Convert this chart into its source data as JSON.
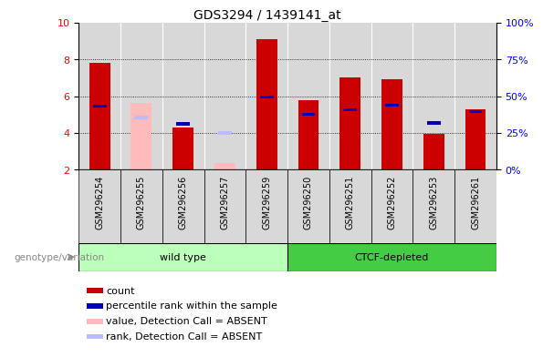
{
  "title": "GDS3294 / 1439141_at",
  "samples": [
    "GSM296254",
    "GSM296255",
    "GSM296256",
    "GSM296257",
    "GSM296259",
    "GSM296250",
    "GSM296251",
    "GSM296252",
    "GSM296253",
    "GSM296261"
  ],
  "count_values": [
    7.8,
    null,
    4.3,
    null,
    9.1,
    5.8,
    7.0,
    6.9,
    3.95,
    5.3
  ],
  "percentile_values": [
    5.45,
    null,
    4.5,
    null,
    5.95,
    5.0,
    5.25,
    5.5,
    4.55,
    5.15
  ],
  "absent_value_values": [
    null,
    5.65,
    null,
    2.35,
    null,
    null,
    null,
    null,
    null,
    null
  ],
  "absent_rank_values": [
    null,
    4.85,
    null,
    4.0,
    null,
    null,
    null,
    null,
    null,
    null
  ],
  "ylim": [
    2,
    10
  ],
  "yticks": [
    2,
    4,
    6,
    8,
    10
  ],
  "grid_lines": [
    4,
    6,
    8
  ],
  "right_yticks_vals": [
    2,
    4,
    6,
    8,
    10
  ],
  "right_ytick_labels": [
    "0%",
    "25%",
    "50%",
    "75%",
    "100%"
  ],
  "bar_color_count": "#cc0000",
  "bar_color_percentile": "#0000bb",
  "bar_color_absent_value": "#ffbbbb",
  "bar_color_absent_rank": "#bbbbff",
  "group_color_wild": "#bbffbb",
  "group_color_ctcf": "#44cc44",
  "bar_width": 0.5,
  "bar_bottom": 2.0,
  "title_fontsize": 10,
  "tick_label_fontsize": 8,
  "sample_fontsize": 7,
  "legend_fontsize": 8,
  "genotype_label": "genotype/variation",
  "wild_label": "wild type",
  "ctcf_label": "CTCF-depleted",
  "n_wild": 5,
  "n_ctcf": 5
}
